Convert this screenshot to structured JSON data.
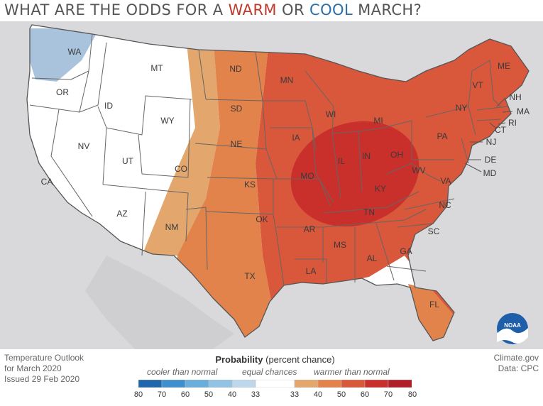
{
  "title": {
    "part1": "WHAT ARE THE ODDS FOR A ",
    "warm": "WARM",
    "part2": " OR ",
    "cool": "COOL",
    "part3": " MARCH?"
  },
  "states": [
    "WA",
    "OR",
    "CA",
    "ID",
    "NV",
    "MT",
    "WY",
    "UT",
    "AZ",
    "CO",
    "NM",
    "ND",
    "SD",
    "NE",
    "KS",
    "OK",
    "TX",
    "MN",
    "IA",
    "MO",
    "AR",
    "LA",
    "WI",
    "IL",
    "MS",
    "MI",
    "IN",
    "KY",
    "TN",
    "AL",
    "OH",
    "GA",
    "FL",
    "WV",
    "VA",
    "NC",
    "SC",
    "PA",
    "NY",
    "VT",
    "NH",
    "ME",
    "MA",
    "CT",
    "RI",
    "NJ",
    "DE",
    "MD"
  ],
  "footer_left": [
    "Temperature Outlook",
    "for March 2020",
    "Issued 29 Feb 2020"
  ],
  "footer_right": [
    "Climate.gov",
    "Data: CPC"
  ],
  "logo_text": "NOAA",
  "legend": {
    "title_bold": "Probability",
    "title_rest": " (percent chance)",
    "cooler": "cooler than normal",
    "equal": "equal chances",
    "warmer": "warmer than normal",
    "ticks": [
      "80",
      "70",
      "60",
      "50",
      "40",
      "33",
      "33",
      "40",
      "50",
      "60",
      "70",
      "80"
    ],
    "colors": [
      "#2166ac",
      "#3f8fcf",
      "#6aaedc",
      "#93c3e3",
      "#bfd7ea",
      "#ffffff",
      "#e3a76e",
      "#e2834c",
      "#d9573a",
      "#c9302c",
      "#b01f27"
    ]
  },
  "colors": {
    "title_warm": "#c0392b",
    "title_cool": "#2c6fa8",
    "band_50": "#e2834c",
    "band_40": "#e3a76e",
    "band_60": "#d9573a",
    "band_70": "#c9302c",
    "cool_40": "#a9c3dd"
  }
}
